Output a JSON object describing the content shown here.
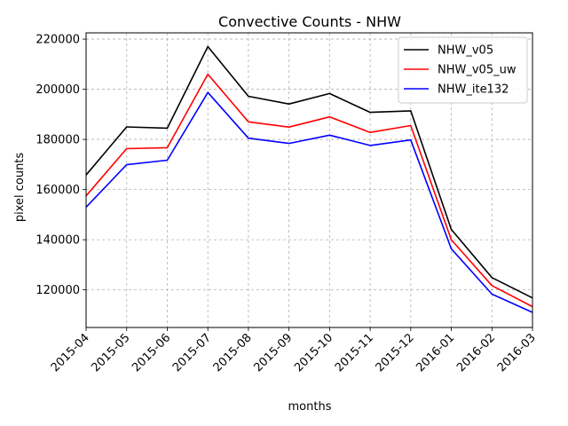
{
  "chart_data": {
    "type": "line",
    "title": "Convective Counts - NHW",
    "xlabel": "months",
    "ylabel": "pixel counts",
    "categories": [
      "2015-04",
      "2015-05",
      "2015-06",
      "2015-07",
      "2015-08",
      "2015-09",
      "2015-10",
      "2015-11",
      "2015-12",
      "2016-01",
      "2016-02",
      "2016-03"
    ],
    "ylim": [
      105000,
      222500
    ],
    "yticks": [
      120000,
      140000,
      160000,
      180000,
      200000,
      220000
    ],
    "grid": true,
    "legend_position": "top-right",
    "series": [
      {
        "name": "NHW_v05",
        "color": "#000000",
        "values": [
          165800,
          185000,
          184500,
          217000,
          197200,
          194100,
          198300,
          190800,
          191400,
          144100,
          124900,
          116800
        ]
      },
      {
        "name": "NHW_v05_uw",
        "color": "#ff0000",
        "values": [
          157500,
          176300,
          176700,
          206000,
          187000,
          184900,
          189000,
          182800,
          185500,
          140000,
          121700,
          113300
        ]
      },
      {
        "name": "NHW_ite132",
        "color": "#0000ff",
        "values": [
          153000,
          169900,
          171700,
          198700,
          180500,
          178400,
          181700,
          177600,
          179800,
          136400,
          118300,
          111000
        ]
      }
    ]
  }
}
